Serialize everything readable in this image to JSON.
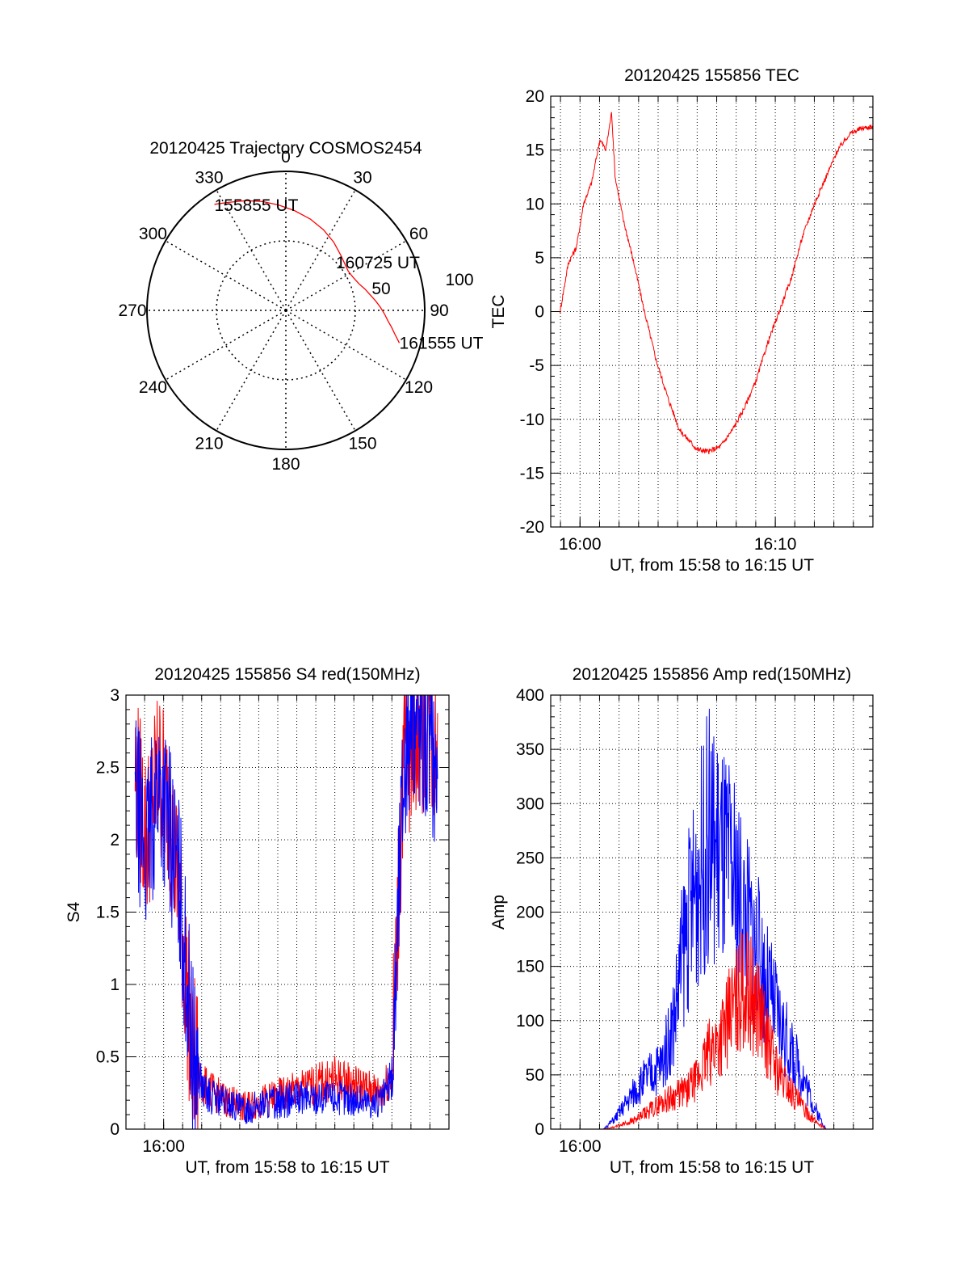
{
  "colors": {
    "red": "#ff0000",
    "blue": "#0000ff",
    "axis": "#000000",
    "grid": "#000000"
  },
  "chart_data": [
    {
      "type": "polar",
      "title": "20120425 Trajectory COSMOS2454",
      "angle_labels": [
        "0",
        "30",
        "60",
        "90",
        "120",
        "150",
        "180",
        "210",
        "240",
        "270",
        "300",
        "330"
      ],
      "radial_labels": [
        "50",
        "100"
      ],
      "rlim": [
        0,
        100
      ],
      "grid": true,
      "start_label": "155855 UT",
      "mid_label": "160725 UT",
      "end_label": "161555 UT",
      "series": [
        {
          "color": "#ff0000",
          "azimuth_deg": [
            326,
            332,
            340,
            348,
            356,
            5,
            15,
            25,
            35,
            45,
            52,
            58,
            64,
            70,
            75,
            80,
            84,
            88,
            92,
            96,
            99,
            102,
            106
          ],
          "zenith_deg": [
            92,
            88,
            84,
            80,
            76,
            72,
            68,
            64,
            60,
            56,
            54,
            53,
            54,
            56,
            59,
            62,
            65,
            68,
            71,
            74,
            77,
            80,
            85
          ]
        }
      ]
    },
    {
      "type": "line",
      "title": "20120425 155856 TEC",
      "xlabel": "UT, from 15:58 to 16:15 UT",
      "ylabel": "TEC",
      "xlim": [
        15.975,
        16.25
      ],
      "ylim": [
        -20,
        20
      ],
      "xticks": [
        {
          "v": 16.0,
          "label": "16:00"
        },
        {
          "v": 16.1667,
          "label": "16:10"
        }
      ],
      "yticks": [
        -20,
        -15,
        -10,
        -5,
        0,
        5,
        10,
        15,
        20
      ],
      "grid": true,
      "series": [
        {
          "color": "#ff0000",
          "x": [
            15.983,
            15.99,
            15.997,
            16.003,
            16.01,
            16.017,
            16.022,
            16.027,
            16.03,
            16.037,
            16.045,
            16.055,
            16.065,
            16.075,
            16.085,
            16.1,
            16.11,
            16.12,
            16.13,
            16.14,
            16.15,
            16.16,
            16.17,
            16.18,
            16.19,
            16.2,
            16.21,
            16.22,
            16.23,
            16.24,
            16.25
          ],
          "y": [
            0.0,
            4.5,
            6.0,
            10.0,
            12.0,
            16.0,
            15.0,
            18.5,
            12.5,
            8.5,
            5.0,
            0.0,
            -4.5,
            -8.0,
            -11.0,
            -12.8,
            -13.0,
            -12.5,
            -11.0,
            -9.0,
            -6.5,
            -3.0,
            0.0,
            3.0,
            7.0,
            10.0,
            12.5,
            15.0,
            16.5,
            17.0,
            17.2
          ]
        }
      ]
    },
    {
      "type": "line",
      "title": "20120425 155856 S4 red(150MHz)",
      "xlabel": "UT, from 15:58 to 16:15 UT",
      "ylabel": "S4",
      "xlim": [
        15.967,
        16.25
      ],
      "ylim": [
        0,
        3
      ],
      "xticks": [
        {
          "v": 16.0,
          "label": "16:00"
        }
      ],
      "yticks": [
        0,
        0.5,
        1,
        1.5,
        2,
        2.5,
        3
      ],
      "grid": true,
      "series": [
        {
          "color": "#ff0000",
          "x": [
            15.975,
            15.985,
            15.995,
            16.005,
            16.015,
            16.025,
            16.035,
            16.05,
            16.07,
            16.09,
            16.11,
            16.13,
            16.15,
            16.17,
            16.19,
            16.2,
            16.21,
            16.22,
            16.23,
            16.24
          ],
          "y": [
            2.5,
            2.0,
            2.5,
            2.2,
            1.5,
            0.5,
            0.3,
            0.22,
            0.15,
            0.2,
            0.25,
            0.3,
            0.35,
            0.3,
            0.25,
            0.4,
            2.5,
            2.7,
            2.8,
            2.6
          ]
        },
        {
          "color": "#0000ff",
          "x": [
            15.975,
            15.985,
            15.995,
            16.005,
            16.015,
            16.025,
            16.035,
            16.05,
            16.07,
            16.09,
            16.11,
            16.13,
            16.15,
            16.17,
            16.19,
            16.2,
            16.21,
            16.22,
            16.23,
            16.24
          ],
          "y": [
            2.3,
            1.9,
            2.4,
            2.1,
            1.6,
            0.55,
            0.25,
            0.2,
            0.13,
            0.18,
            0.2,
            0.22,
            0.22,
            0.2,
            0.18,
            0.35,
            2.5,
            2.9,
            2.7,
            2.5
          ]
        }
      ]
    },
    {
      "type": "line",
      "title": "20120425 155856 Amp red(150MHz)",
      "xlabel": "UT, from 15:58 to 16:15 UT",
      "ylabel": "Amp",
      "xlim": [
        15.975,
        16.25
      ],
      "ylim": [
        0,
        400
      ],
      "xticks": [
        {
          "v": 16.0,
          "label": "16:00"
        }
      ],
      "yticks": [
        0,
        50,
        100,
        150,
        200,
        250,
        300,
        350,
        400
      ],
      "grid": true,
      "series": [
        {
          "color": "#0000ff",
          "x": [
            15.983,
            16.02,
            16.03,
            16.05,
            16.07,
            16.08,
            16.09,
            16.1,
            16.11,
            16.12,
            16.13,
            16.14,
            16.15,
            16.16,
            16.17,
            16.18,
            16.19,
            16.2,
            16.21,
            16.25
          ],
          "y": [
            0,
            0,
            10,
            40,
            60,
            100,
            180,
            230,
            270,
            250,
            230,
            200,
            170,
            130,
            100,
            70,
            50,
            20,
            0,
            0
          ]
        },
        {
          "color": "#ff0000",
          "x": [
            15.983,
            16.02,
            16.03,
            16.05,
            16.07,
            16.09,
            16.1,
            16.11,
            16.12,
            16.13,
            16.14,
            16.15,
            16.16,
            16.17,
            16.18,
            16.19,
            16.2,
            16.21,
            16.25
          ],
          "y": [
            0,
            0,
            2,
            10,
            25,
            35,
            45,
            70,
            85,
            110,
            130,
            120,
            80,
            50,
            35,
            20,
            8,
            0,
            0
          ]
        }
      ]
    }
  ]
}
